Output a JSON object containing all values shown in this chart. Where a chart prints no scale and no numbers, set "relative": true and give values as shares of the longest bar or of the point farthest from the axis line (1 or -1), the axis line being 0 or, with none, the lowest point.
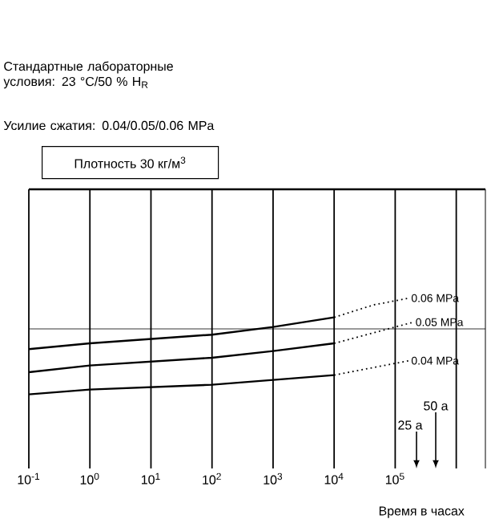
{
  "chart_data": {
    "type": "line",
    "relative": true,
    "log": "x",
    "xlabel": "Время в часах",
    "xlim": [
      0.1,
      3000000
    ],
    "xticks": [
      {
        "value": 0.1,
        "label": "10$^{-1}$"
      },
      {
        "value": 1,
        "label": "10$^{0}$"
      },
      {
        "value": 10,
        "label": "10$^{1}$"
      },
      {
        "value": 100,
        "label": "10$^{2}$"
      },
      {
        "value": 1000,
        "label": "10$^{3}$"
      },
      {
        "value": 10000,
        "label": "10$^{4}$"
      },
      {
        "value": 100000,
        "label": "10$^{5}$"
      },
      {
        "value": 1000000,
        "label": null
      }
    ],
    "grid": "x",
    "legend": false,
    "marker": "none",
    "series": [
      {
        "color": "#000000",
        "line_style": "solid",
        "x": [
          0.1,
          1,
          100,
          1000,
          10000
        ],
        "values": [
          0.47,
          0.53,
          0.62,
          0.7,
          0.8
        ]
      },
      {
        "name": "0.06 MPa",
        "color": "#000000",
        "line_style": "dotted",
        "x": [
          10000,
          45000,
          170000
        ],
        "values": [
          0.8,
          0.93,
          1.0
        ]
      },
      {
        "color": "#000000",
        "line_style": "solid",
        "x": [
          0.1,
          1,
          100,
          1000,
          10000
        ],
        "values": [
          0.23,
          0.3,
          0.38,
          0.45,
          0.53
        ]
      },
      {
        "name": "0.05 MPa",
        "color": "#000000",
        "line_style": "dotted",
        "x": [
          10000,
          200000
        ],
        "values": [
          0.53,
          0.75
        ]
      },
      {
        "color": "#000000",
        "line_style": "solid",
        "x": [
          0.1,
          1,
          100,
          1000,
          10000
        ],
        "values": [
          0.0,
          0.05,
          0.1,
          0.15,
          0.2
        ]
      },
      {
        "name": "0.04 MPa",
        "color": "#000000",
        "line_style": "dotted",
        "x": [
          10000,
          170000
        ],
        "values": [
          0.2,
          0.35
        ]
      }
    ],
    "ref_lines": [
      {
        "axis": "y",
        "value": 0.68,
        "label": null
      }
    ],
    "annotations": [
      "Стандартные лабораторные условия: 23 °C/50 % H$_{R}$",
      "Усилие сжатия: 0.04/0.05/0.06 MPa",
      "Плотность 30 кг/м$^{3}$",
      "25 a",
      "50 a"
    ]
  }
}
